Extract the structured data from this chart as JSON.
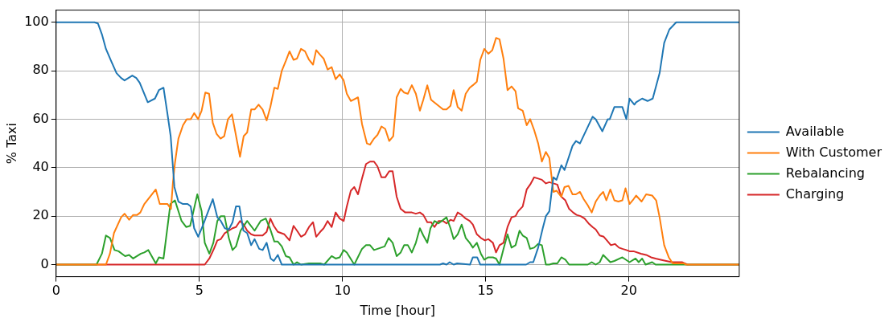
{
  "chart_data": {
    "type": "line",
    "xlabel": "Time [hour]",
    "ylabel": "% Taxi",
    "xlim": [
      0,
      23.85
    ],
    "xticks": [
      0,
      5,
      10,
      15,
      20
    ],
    "ylim": [
      -5,
      105
    ],
    "yticks": [
      0,
      20,
      40,
      60,
      80,
      100
    ],
    "grid": true,
    "legend": "right",
    "marker": "none",
    "line_style": "solid",
    "series": [
      {
        "name": "Available",
        "color": "#1f77b4",
        "x": [
          0,
          1.34,
          1.46,
          1.6,
          1.74,
          1.92,
          2.11,
          2.27,
          2.39,
          2.66,
          2.8,
          2.92,
          3.2,
          3.45,
          3.59,
          3.75,
          3.89,
          4.0,
          4.08,
          4.13,
          4.27,
          4.43,
          4.59,
          4.7,
          4.82,
          4.96,
          5.12,
          5.47,
          5.63,
          5.75,
          5.89,
          6.03,
          6.16,
          6.28,
          6.4,
          6.54,
          6.67,
          6.81,
          6.93,
          7.09,
          7.21,
          7.35,
          7.49,
          7.6,
          7.74,
          7.88,
          13.4,
          13.51,
          13.63,
          13.74,
          13.88,
          14.0,
          14.45,
          14.55,
          14.7,
          14.81,
          16.41,
          16.55,
          16.66,
          16.83,
          16.99,
          17.1,
          17.22,
          17.36,
          17.47,
          17.64,
          17.75,
          18.03,
          18.15,
          18.29,
          18.73,
          18.84,
          19.07,
          19.26,
          19.33,
          19.49,
          19.77,
          19.91,
          20.02,
          20.19,
          20.25,
          20.46,
          20.65,
          20.83,
          21.07,
          21.23,
          21.41,
          21.65,
          21.92,
          22.04,
          23.85
        ],
        "values": [
          100,
          100,
          99.5,
          95,
          89,
          84,
          79,
          77,
          76,
          78,
          77,
          75,
          67,
          68.5,
          72,
          73,
          62,
          53,
          40,
          32,
          26,
          25,
          25,
          24,
          15,
          11.5,
          16,
          27,
          19.5,
          18,
          15,
          14.5,
          17.5,
          24,
          24,
          14,
          13,
          8,
          10.5,
          6.5,
          6,
          9,
          2.5,
          1.5,
          4,
          0,
          0,
          0.5,
          0,
          1,
          0,
          0.5,
          0,
          3,
          3,
          0,
          0,
          1,
          1,
          7,
          15,
          20,
          22,
          36,
          35,
          41,
          39,
          49,
          51,
          50,
          61,
          60,
          55,
          60,
          60,
          65,
          65,
          60,
          68.5,
          66,
          67,
          68.5,
          67.5,
          68.5,
          79,
          91.5,
          97,
          100,
          100,
          100,
          100
        ]
      },
      {
        "name": "With Customer",
        "color": "#ff7f0e",
        "x": [
          0,
          1.74,
          1.88,
          2.02,
          2.27,
          2.39,
          2.55,
          2.69,
          2.83,
          2.94,
          3.08,
          3.48,
          3.62,
          3.89,
          4.01,
          4.08,
          4.15,
          4.27,
          4.43,
          4.56,
          4.7,
          4.82,
          4.96,
          5.08,
          5.21,
          5.34,
          5.47,
          5.6,
          5.74,
          5.87,
          6.0,
          6.14,
          6.42,
          6.55,
          6.67,
          6.81,
          6.93,
          7.07,
          7.21,
          7.35,
          7.48,
          7.62,
          7.74,
          7.88,
          8.02,
          8.15,
          8.29,
          8.41,
          8.55,
          8.69,
          8.83,
          8.97,
          9.08,
          9.22,
          9.34,
          9.48,
          9.62,
          9.76,
          9.9,
          10.04,
          10.15,
          10.29,
          10.54,
          10.68,
          10.85,
          10.96,
          11.1,
          11.22,
          11.36,
          11.49,
          11.63,
          11.77,
          11.89,
          12.03,
          12.15,
          12.28,
          12.42,
          12.56,
          12.7,
          12.82,
          12.96,
          13.09,
          13.51,
          13.63,
          13.77,
          13.88,
          14.02,
          14.16,
          14.3,
          14.44,
          14.55,
          14.69,
          14.81,
          14.95,
          15.09,
          15.23,
          15.36,
          15.48,
          15.62,
          15.76,
          15.9,
          16.04,
          16.13,
          16.29,
          16.43,
          16.55,
          16.69,
          16.83,
          16.96,
          17.1,
          17.22,
          17.36,
          17.47,
          17.64,
          17.75,
          17.89,
          18.03,
          18.15,
          18.29,
          18.42,
          18.56,
          18.7,
          18.84,
          18.98,
          19.1,
          19.21,
          19.35,
          19.49,
          19.63,
          19.77,
          19.88,
          20.02,
          20.16,
          20.25,
          20.44,
          20.6,
          20.81,
          20.95,
          21.07,
          21.23,
          21.39,
          21.53,
          21.92,
          22.0,
          23.85
        ],
        "values": [
          0,
          0,
          4.5,
          13,
          19.5,
          21,
          18.5,
          20.5,
          20.5,
          21.5,
          25,
          31,
          25,
          25,
          23,
          34,
          42,
          52,
          57.5,
          60,
          60,
          62.5,
          60,
          63.5,
          71,
          70.5,
          58.5,
          54,
          52,
          53,
          60,
          62,
          44.5,
          53,
          54.5,
          64,
          64,
          66,
          64,
          59.5,
          65,
          73,
          72.5,
          80,
          84,
          88,
          84.5,
          85,
          89,
          88,
          84.5,
          82.5,
          88.5,
          86.5,
          85,
          80.5,
          81.5,
          76.5,
          78.5,
          76,
          70.5,
          67.5,
          69,
          58,
          50,
          49.5,
          52,
          53.5,
          57,
          56,
          51,
          53,
          69,
          72.5,
          71,
          70.5,
          74,
          70.5,
          63.5,
          68,
          74,
          68,
          64,
          64,
          65.5,
          72,
          65,
          63.5,
          70.5,
          73,
          74,
          75.5,
          84.5,
          89,
          87,
          88.5,
          93.5,
          93,
          85,
          72,
          73.5,
          71.5,
          64.5,
          63.5,
          57.5,
          60,
          55.5,
          50,
          42.5,
          46.5,
          44,
          30,
          30.5,
          28,
          32,
          32.5,
          29,
          29,
          30,
          27,
          24.5,
          21.5,
          26,
          28.5,
          30,
          26.5,
          31,
          26.5,
          26,
          26.5,
          31.5,
          25,
          27,
          28.5,
          26,
          29,
          28.5,
          26.5,
          19.5,
          8,
          3,
          0.5,
          0.5,
          0,
          0
        ]
      },
      {
        "name": "Rebalancing",
        "color": "#2ca02c",
        "x": [
          0,
          1.41,
          1.6,
          1.74,
          1.88,
          2.04,
          2.18,
          2.41,
          2.55,
          2.69,
          2.96,
          3.08,
          3.22,
          3.48,
          3.59,
          3.75,
          3.99,
          4.15,
          4.38,
          4.54,
          4.68,
          4.93,
          5.08,
          5.19,
          5.35,
          5.49,
          5.63,
          5.75,
          5.88,
          6.03,
          6.16,
          6.28,
          6.44,
          6.67,
          6.93,
          7.14,
          7.32,
          7.48,
          7.62,
          7.74,
          7.88,
          8.02,
          8.15,
          8.29,
          8.41,
          8.55,
          8.83,
          9.22,
          9.36,
          9.62,
          9.76,
          9.9,
          10.04,
          10.15,
          10.41,
          10.68,
          10.82,
          10.96,
          11.1,
          11.47,
          11.61,
          11.75,
          11.89,
          12.03,
          12.15,
          12.28,
          12.42,
          12.56,
          12.7,
          12.82,
          12.96,
          13.07,
          13.21,
          13.35,
          13.63,
          13.77,
          13.88,
          14.02,
          14.16,
          14.3,
          14.44,
          14.55,
          14.69,
          14.83,
          14.95,
          15.09,
          15.25,
          15.36,
          15.48,
          15.62,
          15.76,
          15.9,
          16.04,
          16.18,
          16.29,
          16.43,
          16.55,
          16.69,
          16.83,
          16.96,
          17.1,
          17.22,
          17.36,
          17.5,
          17.64,
          17.78,
          17.91,
          18.56,
          18.7,
          18.84,
          18.98,
          19.1,
          19.35,
          19.49,
          19.77,
          20.02,
          20.16,
          20.23,
          20.34,
          20.46,
          20.58,
          20.81,
          20.93,
          23.85
        ],
        "values": [
          0,
          0,
          4.5,
          12,
          11,
          6,
          5.5,
          3.5,
          4,
          2.5,
          4.5,
          5,
          6,
          0.5,
          3,
          2.5,
          25,
          26.5,
          18,
          15.5,
          16,
          29,
          22,
          9,
          4.5,
          9,
          18,
          20,
          20,
          11,
          6,
          7.5,
          14,
          18,
          14,
          18,
          19,
          14.5,
          9.5,
          9.5,
          7.5,
          3.5,
          3,
          0,
          1,
          0,
          0.5,
          0.5,
          0,
          3.5,
          2.5,
          3,
          6,
          5,
          0,
          6.5,
          8,
          8,
          6,
          7.5,
          11,
          9,
          3.5,
          5,
          8,
          8,
          5,
          9,
          15,
          12,
          9,
          15,
          18,
          17,
          19.5,
          15,
          10.5,
          12.5,
          16.5,
          11,
          9,
          7,
          9,
          4.5,
          2,
          3,
          3,
          2.5,
          0,
          6.5,
          12.5,
          7,
          8,
          14,
          12,
          11,
          6.5,
          7,
          8.5,
          8,
          0,
          0,
          0.5,
          0.5,
          3,
          2,
          0,
          0,
          1,
          0,
          1,
          4,
          1,
          1.5,
          3,
          1,
          2,
          2.5,
          1,
          2.5,
          0,
          1,
          0,
          0
        ]
      },
      {
        "name": "Charging",
        "color": "#d62728",
        "x": [
          0,
          5.19,
          5.35,
          5.51,
          5.63,
          5.75,
          5.89,
          6.03,
          6.16,
          6.28,
          6.42,
          6.55,
          6.67,
          6.81,
          6.93,
          7.21,
          7.35,
          7.48,
          7.6,
          7.74,
          7.97,
          8.15,
          8.29,
          8.41,
          8.55,
          8.69,
          8.83,
          8.97,
          9.08,
          9.22,
          9.34,
          9.48,
          9.62,
          9.76,
          9.9,
          10.04,
          10.15,
          10.29,
          10.41,
          10.54,
          10.68,
          10.82,
          10.96,
          11.1,
          11.22,
          11.36,
          11.49,
          11.63,
          11.75,
          11.89,
          12.03,
          12.19,
          12.42,
          12.56,
          12.7,
          12.82,
          12.96,
          13.09,
          13.21,
          13.35,
          13.51,
          13.63,
          13.77,
          13.88,
          14.02,
          14.16,
          14.3,
          14.44,
          14.55,
          14.69,
          14.83,
          14.97,
          15.09,
          15.25,
          15.36,
          15.48,
          15.62,
          15.76,
          15.9,
          16.04,
          16.13,
          16.29,
          16.43,
          16.55,
          16.69,
          16.83,
          16.96,
          17.1,
          17.22,
          17.36,
          17.5,
          17.64,
          17.78,
          17.91,
          18.05,
          18.17,
          18.31,
          18.45,
          18.59,
          18.73,
          18.84,
          18.98,
          19.12,
          19.23,
          19.37,
          19.51,
          19.65,
          19.77,
          19.91,
          20.02,
          20.16,
          20.42,
          20.6,
          20.77,
          20.93,
          21.11,
          21.3,
          21.5,
          21.85,
          22.04,
          23.85
        ],
        "values": [
          0,
          0,
          2.5,
          6.5,
          10,
          10.5,
          13,
          14,
          15,
          15.5,
          18,
          16.5,
          14,
          12.5,
          12,
          12,
          13.5,
          19,
          16,
          13.5,
          12.5,
          10,
          16,
          14,
          11.5,
          12.5,
          15.5,
          17.5,
          11.5,
          13.5,
          15,
          18,
          15.5,
          21.5,
          19,
          18,
          24,
          30.5,
          32,
          29,
          35.5,
          41.5,
          42.5,
          42.5,
          40.5,
          36,
          36,
          38.5,
          38.5,
          28,
          23,
          21.5,
          21.5,
          21,
          21.5,
          20.5,
          17.5,
          17.5,
          15.5,
          18,
          18,
          17,
          18.5,
          18,
          21.5,
          20.5,
          19,
          18,
          16.5,
          12.5,
          11,
          10,
          10.5,
          9,
          5,
          8,
          9,
          15.5,
          19.5,
          20,
          22,
          24,
          31,
          33,
          36,
          35.5,
          35,
          33.5,
          34,
          33.5,
          33,
          28,
          26.5,
          23,
          21.5,
          20.5,
          20,
          19,
          17,
          15.5,
          14.5,
          12,
          11.5,
          10,
          8,
          8.5,
          7,
          6.5,
          6,
          5.5,
          5.5,
          4.5,
          4,
          3,
          2.5,
          2,
          1.5,
          1,
          1,
          0,
          0
        ]
      }
    ]
  }
}
